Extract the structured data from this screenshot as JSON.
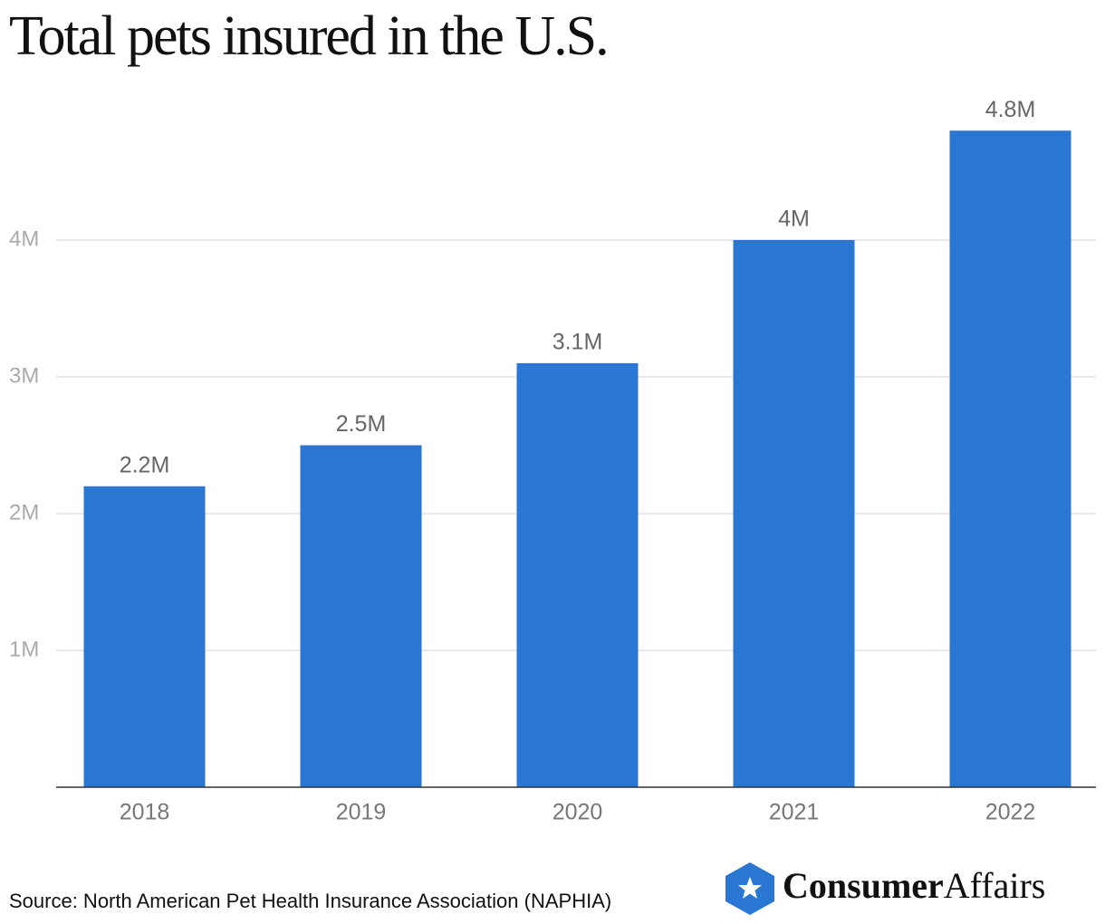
{
  "chart_data": {
    "type": "bar",
    "title": "Total pets insured in the U.S.",
    "categories": [
      "2018",
      "2019",
      "2020",
      "2021",
      "2022"
    ],
    "values": [
      2.2,
      2.5,
      3.1,
      4,
      4.8
    ],
    "value_labels": [
      "2.2M",
      "2.5M",
      "3.1M",
      "4M",
      "4.8M"
    ],
    "color": "#2a77d3",
    "ylim": [
      0,
      5
    ],
    "yticks": [
      {
        "value": 1,
        "label": "1M"
      },
      {
        "value": 2,
        "label": "2M"
      },
      {
        "value": 3,
        "label": "3M"
      },
      {
        "value": 4,
        "label": "4M"
      }
    ],
    "grid": true,
    "source": "Source: North American Pet Health Insurance Association (NAPHIA)",
    "brand": [
      "Consumer",
      "Affairs"
    ]
  }
}
